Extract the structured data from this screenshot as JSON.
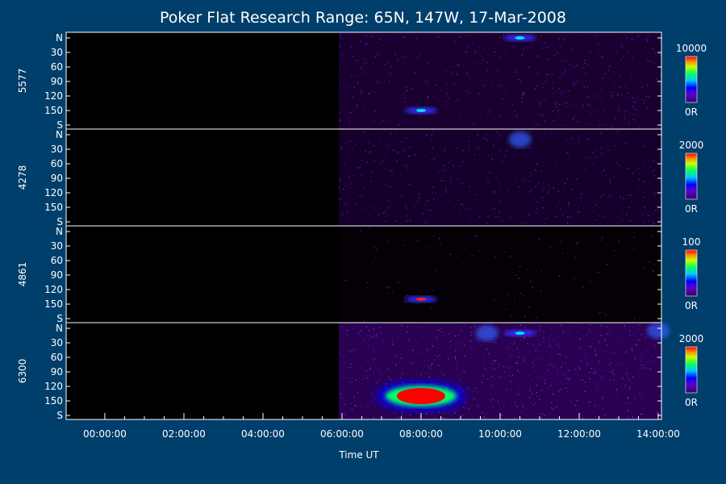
{
  "chart_data": {
    "type": "heatmap",
    "title": "Poker Flat Research Range: 65N, 147W, 17-Mar-2008",
    "xlabel": "Time UT",
    "x_ticks": [
      "00:00:00",
      "02:00:00",
      "04:00:00",
      "06:00:00",
      "08:00:00",
      "10:00:00",
      "12:00:00",
      "14:00:00"
    ],
    "y_ticks": [
      "N",
      "30",
      "60",
      "90",
      "120",
      "150",
      "S"
    ],
    "data_start": "05:55:00",
    "panels": [
      {
        "label": "5577",
        "scale_max": "10000",
        "scale_min": "0R",
        "features": [
          {
            "time": "08:00:00",
            "angle": 150,
            "intensity": "high"
          },
          {
            "time": "10:30:00",
            "angle": 0,
            "intensity": "high"
          }
        ]
      },
      {
        "label": "4278",
        "scale_max": "2000",
        "scale_min": "0R",
        "features": [
          {
            "time": "10:30:00",
            "angle": 10,
            "intensity": "medium"
          }
        ]
      },
      {
        "label": "4861",
        "scale_max": "100",
        "scale_min": "0R",
        "features": [
          {
            "time": "08:00:00",
            "angle": 140,
            "intensity": "high"
          }
        ]
      },
      {
        "label": "6300",
        "scale_max": "2000",
        "scale_min": "0R",
        "features": [
          {
            "time": "08:00:00",
            "angle": 140,
            "intensity": "saturated"
          },
          {
            "time": "09:40:00",
            "angle": 10,
            "intensity": "medium"
          },
          {
            "time": "10:30:00",
            "angle": 10,
            "intensity": "high"
          },
          {
            "time": "14:00:00",
            "angle": 5,
            "intensity": "medium"
          }
        ]
      }
    ],
    "colors": {
      "background": "#003e6b",
      "plot_background": "#000000",
      "colorscale": [
        "#000000",
        "#3a006a",
        "#5a00c8",
        "#0000ff",
        "#00c8ff",
        "#00ff60",
        "#c8ff00",
        "#ff8000",
        "#ff0000"
      ]
    },
    "grid": false
  }
}
